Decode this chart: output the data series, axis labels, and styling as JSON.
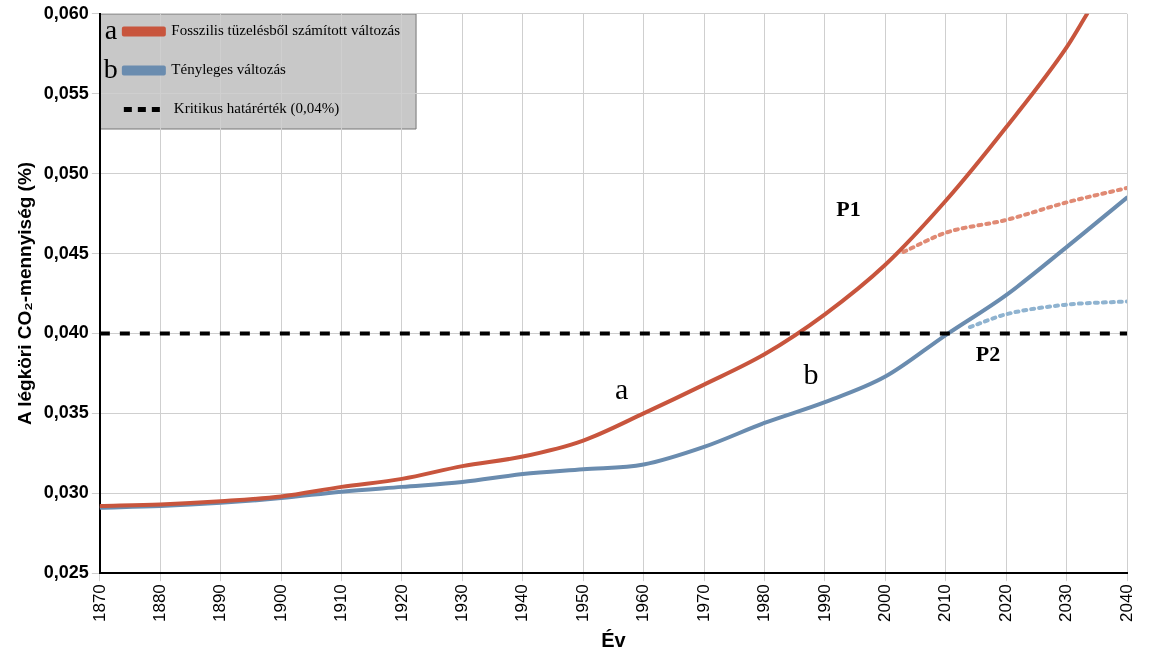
{
  "chart_data": {
    "type": "line",
    "xlabel": "Év",
    "ylabel": "A légköri CO₂-mennyiség (%)",
    "xlim": [
      1870,
      2040
    ],
    "xticks": [
      1870,
      1880,
      1890,
      1900,
      1910,
      1920,
      1930,
      1940,
      1950,
      1960,
      1970,
      1980,
      1990,
      2000,
      2010,
      2020,
      2030,
      2040
    ],
    "ylim": [
      0.025,
      0.06
    ],
    "yticks": [
      {
        "value": 0.025,
        "label": "0,025"
      },
      {
        "value": 0.03,
        "label": "0,030"
      },
      {
        "value": 0.035,
        "label": "0,035"
      },
      {
        "value": 0.04,
        "label": "0,040"
      },
      {
        "value": 0.045,
        "label": "0,045"
      },
      {
        "value": 0.05,
        "label": "0,050"
      },
      {
        "value": 0.055,
        "label": "0,055"
      },
      {
        "value": 0.06,
        "label": "0,060"
      }
    ],
    "grid": true,
    "legend": "top left",
    "line_style": "solid",
    "marker": "none",
    "series": [
      {
        "name": "Fosszilis tüzelésből számított változás",
        "color": "#c8553d",
        "x": [
          1870,
          1880,
          1890,
          1900,
          1910,
          1920,
          1930,
          1940,
          1950,
          1960,
          1970,
          1980,
          1990,
          2000,
          2010,
          2020,
          2030,
          2033.4
        ],
        "values": [
          0.0292,
          0.0293,
          0.0295,
          0.0298,
          0.0304,
          0.0309,
          0.0317,
          0.0323,
          0.0333,
          0.035,
          0.0368,
          0.0387,
          0.0412,
          0.0443,
          0.0483,
          0.0529,
          0.0579,
          0.06
        ]
      },
      {
        "name": "Tényleges változás",
        "color": "#6a8caf",
        "x": [
          1870,
          1880,
          1890,
          1900,
          1910,
          1920,
          1930,
          1940,
          1950,
          1960,
          1970,
          1980,
          1990,
          2000,
          2010,
          2020,
          2030,
          2040
        ],
        "values": [
          0.0291,
          0.0292,
          0.0294,
          0.0297,
          0.0301,
          0.0304,
          0.0307,
          0.0312,
          0.0315,
          0.0318,
          0.0329,
          0.0344,
          0.0357,
          0.0373,
          0.0399,
          0.0424,
          0.0454,
          0.0485
        ]
      },
      {
        "color": "#e08a74",
        "line_style": "dotted",
        "x": [
          2003,
          2010,
          2020,
          2030,
          2040
        ],
        "values": [
          0.0451,
          0.0463,
          0.0471,
          0.0482,
          0.0491
        ]
      },
      {
        "color": "#8fb3d0",
        "line_style": "dotted",
        "x": [
          2014,
          2020,
          2030,
          2040
        ],
        "values": [
          0.0404,
          0.0412,
          0.0418,
          0.042
        ]
      }
    ],
    "ref_lines": [
      {
        "axis": "y",
        "value": 0.04,
        "label": "Kritikus határérték (0,04%)",
        "color": "#000000",
        "line_style": "dashed"
      }
    ],
    "annotations": [
      "a",
      "b",
      {
        "text": "a",
        "x": 1960,
        "y": 0.035
      },
      {
        "text": "b",
        "x": 1990,
        "y": 0.0357
      },
      {
        "text": "P1",
        "x": 2003,
        "y": 0.0451
      },
      {
        "text": "P2",
        "x": 2014,
        "y": 0.0404
      }
    ]
  }
}
